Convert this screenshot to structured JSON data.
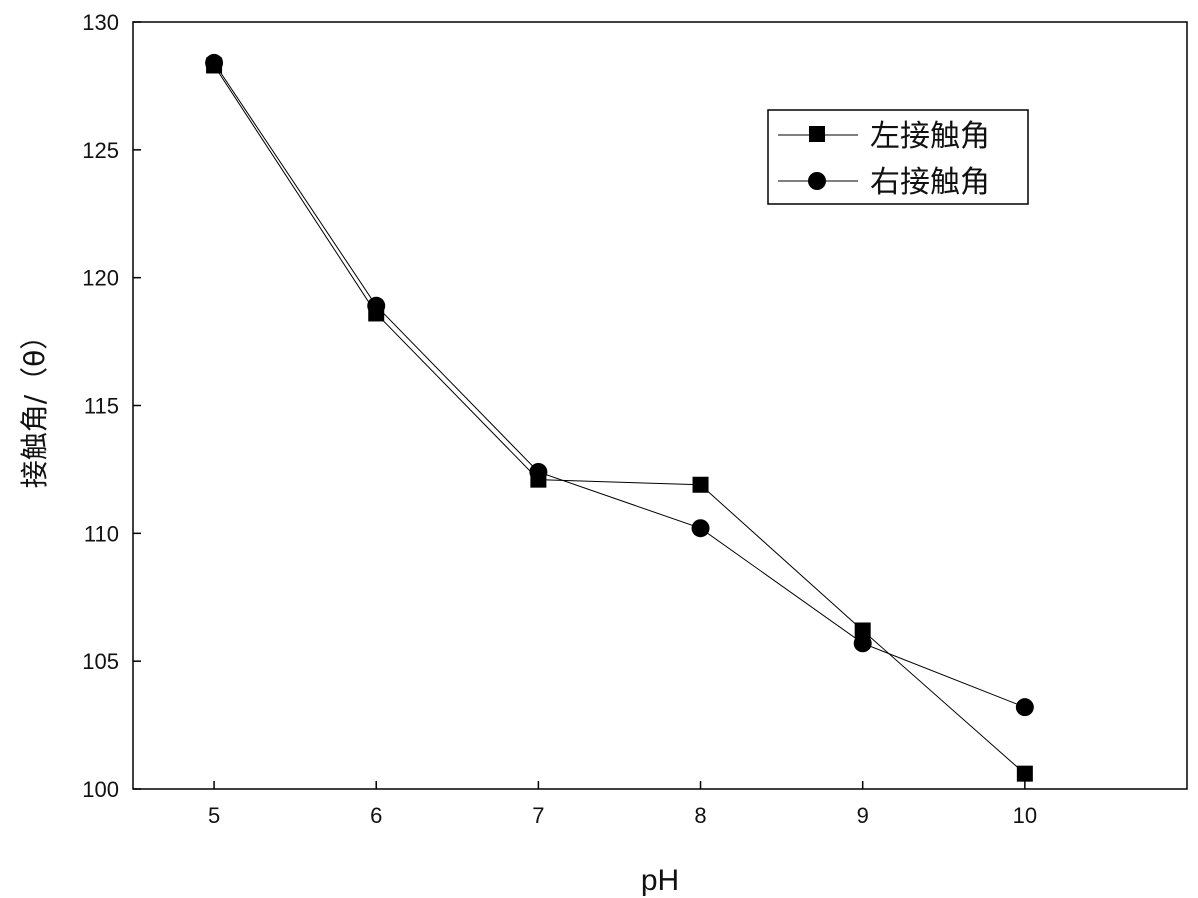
{
  "chart_data": {
    "type": "line",
    "xlabel": "pH",
    "ylabel": "接触角/（θ）",
    "x": [
      5,
      6,
      7,
      8,
      9,
      10
    ],
    "xlim": [
      4.5,
      11
    ],
    "ylim": [
      100,
      130
    ],
    "xticks": [
      5,
      6,
      7,
      8,
      9,
      10
    ],
    "yticks": [
      100,
      105,
      110,
      115,
      120,
      125,
      130
    ],
    "grid": false,
    "legend_position": "top-right",
    "series": [
      {
        "name": "左接触角",
        "marker": "square",
        "color": "#000000",
        "values": [
          128.3,
          118.6,
          112.1,
          111.9,
          106.2,
          100.6
        ]
      },
      {
        "name": "右接触角",
        "marker": "circle",
        "color": "#000000",
        "values": [
          128.4,
          118.9,
          112.4,
          110.2,
          105.7,
          103.2
        ]
      }
    ]
  }
}
